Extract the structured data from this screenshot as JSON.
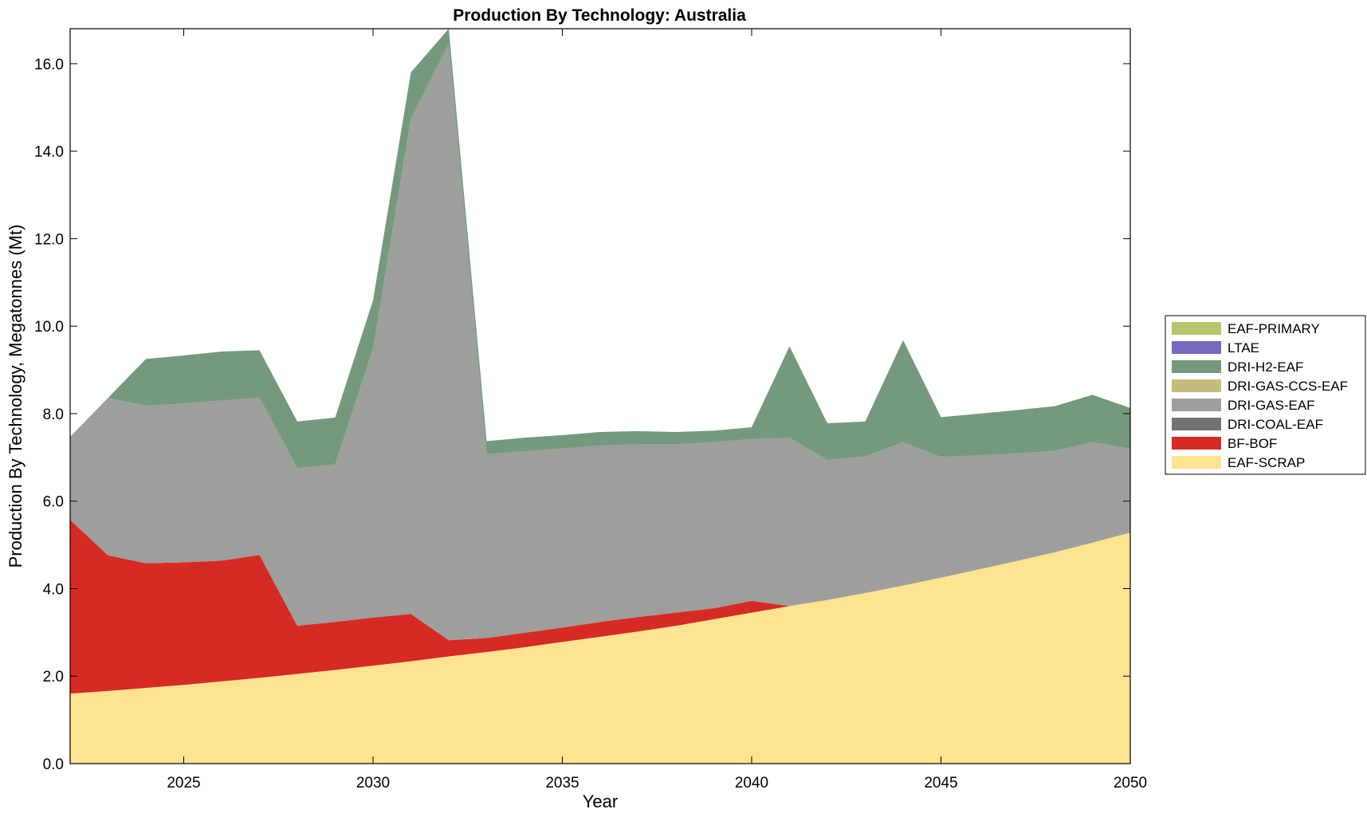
{
  "chart_data": {
    "type": "area",
    "stacked": true,
    "title": "Production By Technology: Australia",
    "xlabel": "Year",
    "ylabel": "Production By Technology, Megatonnes (Mt)",
    "xlim": [
      2022,
      2050
    ],
    "ylim": [
      0,
      16.8
    ],
    "xticks": [
      2025,
      2030,
      2035,
      2040,
      2045,
      2050
    ],
    "yticks": [
      0,
      2,
      4,
      6,
      8,
      10,
      12,
      14,
      16
    ],
    "ytick_labels": [
      "0.0",
      "2.0",
      "4.0",
      "6.0",
      "8.0",
      "10.0",
      "12.0",
      "14.0",
      "16.0"
    ],
    "grid": false,
    "legend_position": "right",
    "x": [
      2022,
      2023,
      2024,
      2025,
      2026,
      2027,
      2028,
      2029,
      2030,
      2031,
      2032,
      2033,
      2034,
      2035,
      2036,
      2037,
      2038,
      2039,
      2040,
      2041,
      2042,
      2043,
      2044,
      2045,
      2046,
      2047,
      2048,
      2049,
      2050
    ],
    "series": [
      {
        "name": "EAF-SCRAP",
        "color": "#fee391",
        "values": [
          1.6,
          1.66,
          1.73,
          1.8,
          1.88,
          1.96,
          2.05,
          2.14,
          2.24,
          2.34,
          2.45,
          2.55,
          2.66,
          2.78,
          2.9,
          3.02,
          3.15,
          3.3,
          3.45,
          3.6,
          3.74,
          3.9,
          4.07,
          4.25,
          4.44,
          4.63,
          4.83,
          5.05,
          5.28
        ]
      },
      {
        "name": "BF-BOF",
        "color": "#d62a24",
        "values": [
          3.97,
          3.1,
          2.85,
          2.8,
          2.76,
          2.81,
          1.1,
          1.1,
          1.1,
          1.08,
          0.37,
          0.32,
          0.33,
          0.33,
          0.34,
          0.33,
          0.3,
          0.25,
          0.27,
          0.0,
          0,
          0,
          0,
          0,
          0,
          0,
          0,
          0,
          0
        ]
      },
      {
        "name": "DRI-COAL-EAF",
        "color": "#737373",
        "values": [
          0,
          0,
          0,
          0,
          0,
          0,
          0,
          0,
          0,
          0,
          0,
          0,
          0,
          0,
          0,
          0,
          0,
          0,
          0,
          0,
          0,
          0,
          0,
          0,
          0,
          0,
          0,
          0,
          0
        ]
      },
      {
        "name": "DRI-GAS-EAF",
        "color": "#9e9e9d",
        "values": [
          1.9,
          3.6,
          3.6,
          3.63,
          3.66,
          3.6,
          3.6,
          3.6,
          6.15,
          11.33,
          13.63,
          4.2,
          4.15,
          4.09,
          4.03,
          3.95,
          3.85,
          3.8,
          3.7,
          3.85,
          3.2,
          3.12,
          3.28,
          2.76,
          2.61,
          2.46,
          2.32,
          2.3,
          1.92
        ]
      },
      {
        "name": "DRI-GAS-CCS-EAF",
        "color": "#c4bc7c",
        "values": [
          0,
          0,
          0,
          0,
          0,
          0,
          0,
          0,
          0,
          0,
          0,
          0,
          0,
          0,
          0,
          0,
          0,
          0,
          0,
          0,
          0,
          0,
          0,
          0,
          0,
          0,
          0,
          0,
          0
        ]
      },
      {
        "name": "DRI-H2-EAF",
        "color": "#75997c",
        "values": [
          0,
          0,
          1.07,
          1.1,
          1.12,
          1.08,
          1.07,
          1.07,
          1.1,
          1.05,
          0.35,
          0.3,
          0.31,
          0.31,
          0.31,
          0.3,
          0.28,
          0.26,
          0.27,
          2.09,
          0.84,
          0.8,
          2.33,
          0.91,
          0.95,
          0.99,
          1.02,
          1.08,
          0.93
        ]
      },
      {
        "name": "LTAE",
        "color": "#7569bc",
        "values": [
          0,
          0,
          0,
          0,
          0,
          0,
          0,
          0,
          0,
          0,
          0,
          0,
          0,
          0,
          0,
          0,
          0,
          0,
          0,
          0,
          0,
          0,
          0,
          0,
          0,
          0,
          0,
          0,
          0
        ]
      },
      {
        "name": "EAF-PRIMARY",
        "color": "#b7c46c",
        "values": [
          0,
          0,
          0,
          0,
          0,
          0,
          0,
          0,
          0,
          0,
          0,
          0,
          0,
          0,
          0,
          0,
          0,
          0,
          0,
          0,
          0,
          0,
          0,
          0,
          0,
          0,
          0,
          0,
          0
        ]
      }
    ],
    "legend_order": [
      "EAF-PRIMARY",
      "LTAE",
      "DRI-H2-EAF",
      "DRI-GAS-CCS-EAF",
      "DRI-GAS-EAF",
      "DRI-COAL-EAF",
      "BF-BOF",
      "EAF-SCRAP"
    ]
  }
}
